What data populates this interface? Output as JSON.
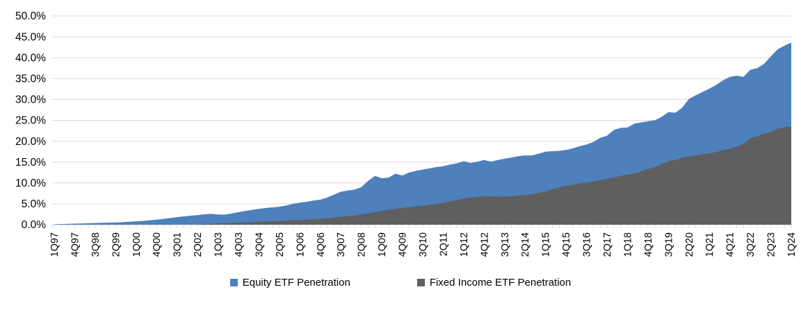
{
  "chart_data": {
    "type": "area",
    "title": "",
    "xlabel": "",
    "ylabel": "",
    "ylim": [
      0,
      50
    ],
    "ytick_step": 5,
    "ytick_labels": [
      "0.0%",
      "5.0%",
      "10.0%",
      "15.0%",
      "20.0%",
      "25.0%",
      "30.0%",
      "35.0%",
      "40.0%",
      "45.0%",
      "50.0%"
    ],
    "grid": "horizontal",
    "x_label_every": 3,
    "x_labels": [
      "1Q97",
      "4Q97",
      "3Q98",
      "2Q99",
      "1Q00",
      "4Q00",
      "3Q01",
      "2Q02",
      "1Q03",
      "4Q03",
      "3Q04",
      "2Q05",
      "1Q06",
      "4Q06",
      "3Q07",
      "2Q08",
      "1Q09",
      "4Q09",
      "3Q10",
      "2Q11",
      "1Q12",
      "4Q12",
      "3Q13",
      "2Q14",
      "1Q15",
      "4Q15",
      "3Q16",
      "2Q17",
      "1Q18",
      "4Q18",
      "3Q19",
      "2Q20",
      "1Q21",
      "4Q21",
      "3Q22",
      "2Q23",
      "1Q24"
    ],
    "series": [
      {
        "name": "Equity ETF Penetration",
        "color": "#4d80bc",
        "values": [
          0.1,
          0.15,
          0.2,
          0.25,
          0.3,
          0.35,
          0.4,
          0.45,
          0.5,
          0.55,
          0.6,
          0.7,
          0.8,
          0.9,
          1.05,
          1.2,
          1.4,
          1.6,
          1.8,
          2.0,
          2.15,
          2.3,
          2.5,
          2.6,
          2.45,
          2.4,
          2.7,
          3.0,
          3.3,
          3.55,
          3.8,
          4.0,
          4.15,
          4.3,
          4.6,
          5.0,
          5.3,
          5.5,
          5.8,
          6.0,
          6.5,
          7.2,
          7.9,
          8.2,
          8.4,
          9.0,
          10.5,
          11.7,
          11.1,
          11.3,
          12.2,
          11.8,
          12.5,
          12.9,
          13.2,
          13.5,
          13.8,
          14.0,
          14.4,
          14.7,
          15.2,
          14.8,
          15.1,
          15.5,
          15.1,
          15.5,
          15.8,
          16.1,
          16.4,
          16.6,
          16.6,
          17.0,
          17.5,
          17.6,
          17.7,
          17.9,
          18.3,
          18.8,
          19.2,
          19.8,
          20.8,
          21.3,
          22.7,
          23.2,
          23.3,
          24.2,
          24.5,
          24.8,
          25.0,
          25.8,
          27.0,
          26.8,
          28.0,
          30.1,
          31.0,
          31.8,
          32.6,
          33.5,
          34.6,
          35.4,
          35.7,
          35.4,
          37.1,
          37.5,
          38.5,
          40.3,
          42.0,
          42.9,
          43.6
        ]
      },
      {
        "name": "Fixed Income ETF Penetration",
        "color": "#5f5f5f",
        "values": [
          0,
          0,
          0,
          0,
          0,
          0,
          0,
          0,
          0,
          0,
          0,
          0,
          0,
          0,
          0,
          0,
          0,
          0,
          0,
          0,
          0,
          0.05,
          0.1,
          0.2,
          0.3,
          0.35,
          0.4,
          0.5,
          0.55,
          0.6,
          0.7,
          0.75,
          0.85,
          0.9,
          1.0,
          1.05,
          1.1,
          1.2,
          1.3,
          1.4,
          1.55,
          1.75,
          1.9,
          2.05,
          2.2,
          2.4,
          2.7,
          3.0,
          3.3,
          3.6,
          3.8,
          4.0,
          4.2,
          4.35,
          4.5,
          4.75,
          5.0,
          5.2,
          5.6,
          5.9,
          6.3,
          6.5,
          6.7,
          6.8,
          6.8,
          6.7,
          6.7,
          6.8,
          7.0,
          7.1,
          7.3,
          7.6,
          8.0,
          8.5,
          8.9,
          9.3,
          9.6,
          9.9,
          10.1,
          10.4,
          10.7,
          11.0,
          11.3,
          11.7,
          12.0,
          12.3,
          12.8,
          13.3,
          13.8,
          14.5,
          15.2,
          15.5,
          16.0,
          16.4,
          16.6,
          16.9,
          17.1,
          17.4,
          17.8,
          18.2,
          18.7,
          19.3,
          20.7,
          21.2,
          21.8,
          22.2,
          23.0,
          23.3,
          23.6
        ]
      }
    ],
    "legend_position": "bottom-center",
    "colors": {
      "equity": "#4d80bc",
      "fixed_income": "#5f5f5f",
      "gridline": "#d9d9d9",
      "axis_text": "#000000"
    }
  },
  "legend": {
    "equity_label": "Equity ETF Penetration",
    "fixed_income_label": "Fixed Income ETF Penetration"
  }
}
